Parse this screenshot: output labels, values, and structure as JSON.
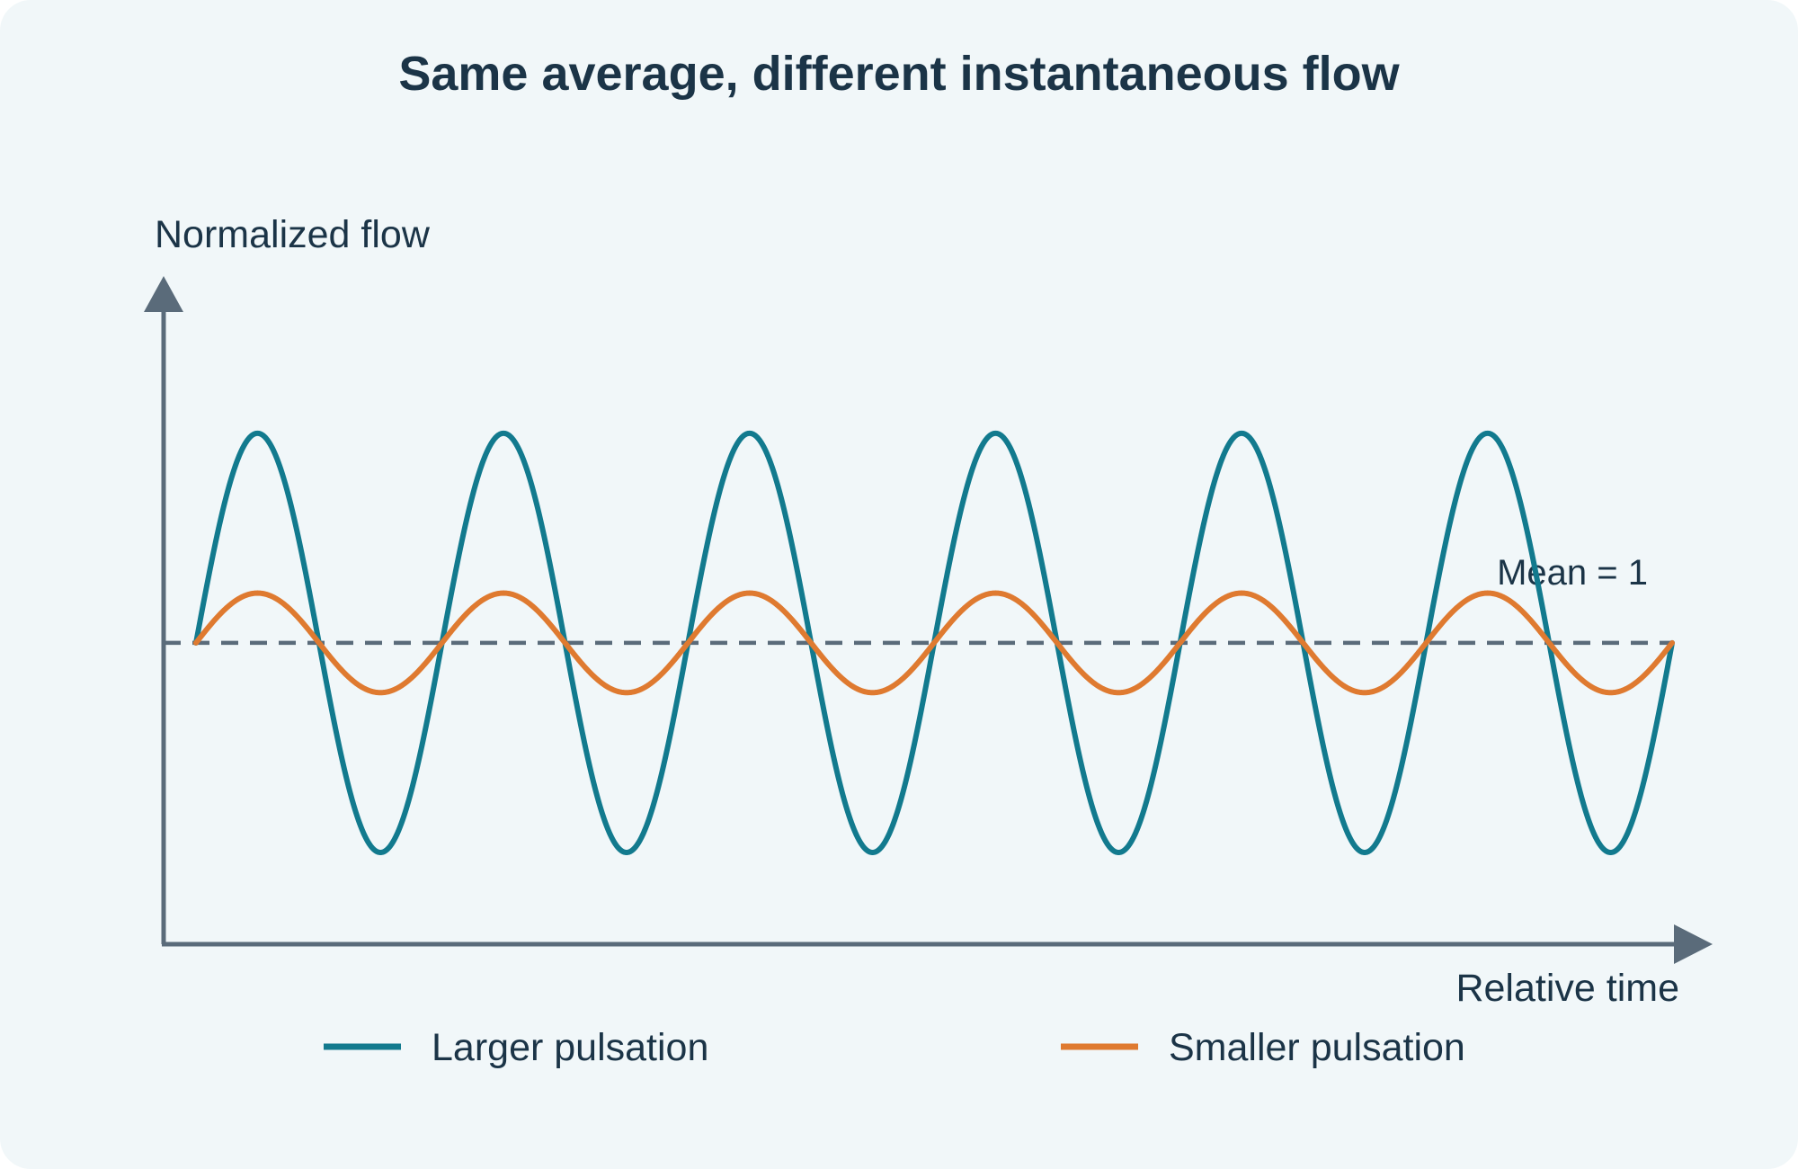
{
  "colors": {
    "background": "#f1f7f9",
    "axis": "#5a6b7a",
    "text": "#1b3447",
    "larger": "#127a8e",
    "smaller": "#df7a30",
    "mean_line": "#5a6b7a"
  },
  "chart_data": {
    "type": "line",
    "title": "Same average, different instantaneous flow",
    "xlabel": "Relative time",
    "ylabel": "Normalized flow",
    "x_range": [
      0,
      6
    ],
    "y_range": [
      -0.15,
      2.4
    ],
    "grid": false,
    "legend_position": "bottom",
    "mean": {
      "value": 1,
      "label": "Mean = 1"
    },
    "series": [
      {
        "name": "Larger pulsation",
        "mean": 1,
        "amplitude": 0.8,
        "cycles": 6,
        "color": "#127a8e"
      },
      {
        "name": "Smaller pulsation",
        "mean": 1,
        "amplitude": 0.19,
        "cycles": 6,
        "color": "#df7a30"
      }
    ]
  }
}
